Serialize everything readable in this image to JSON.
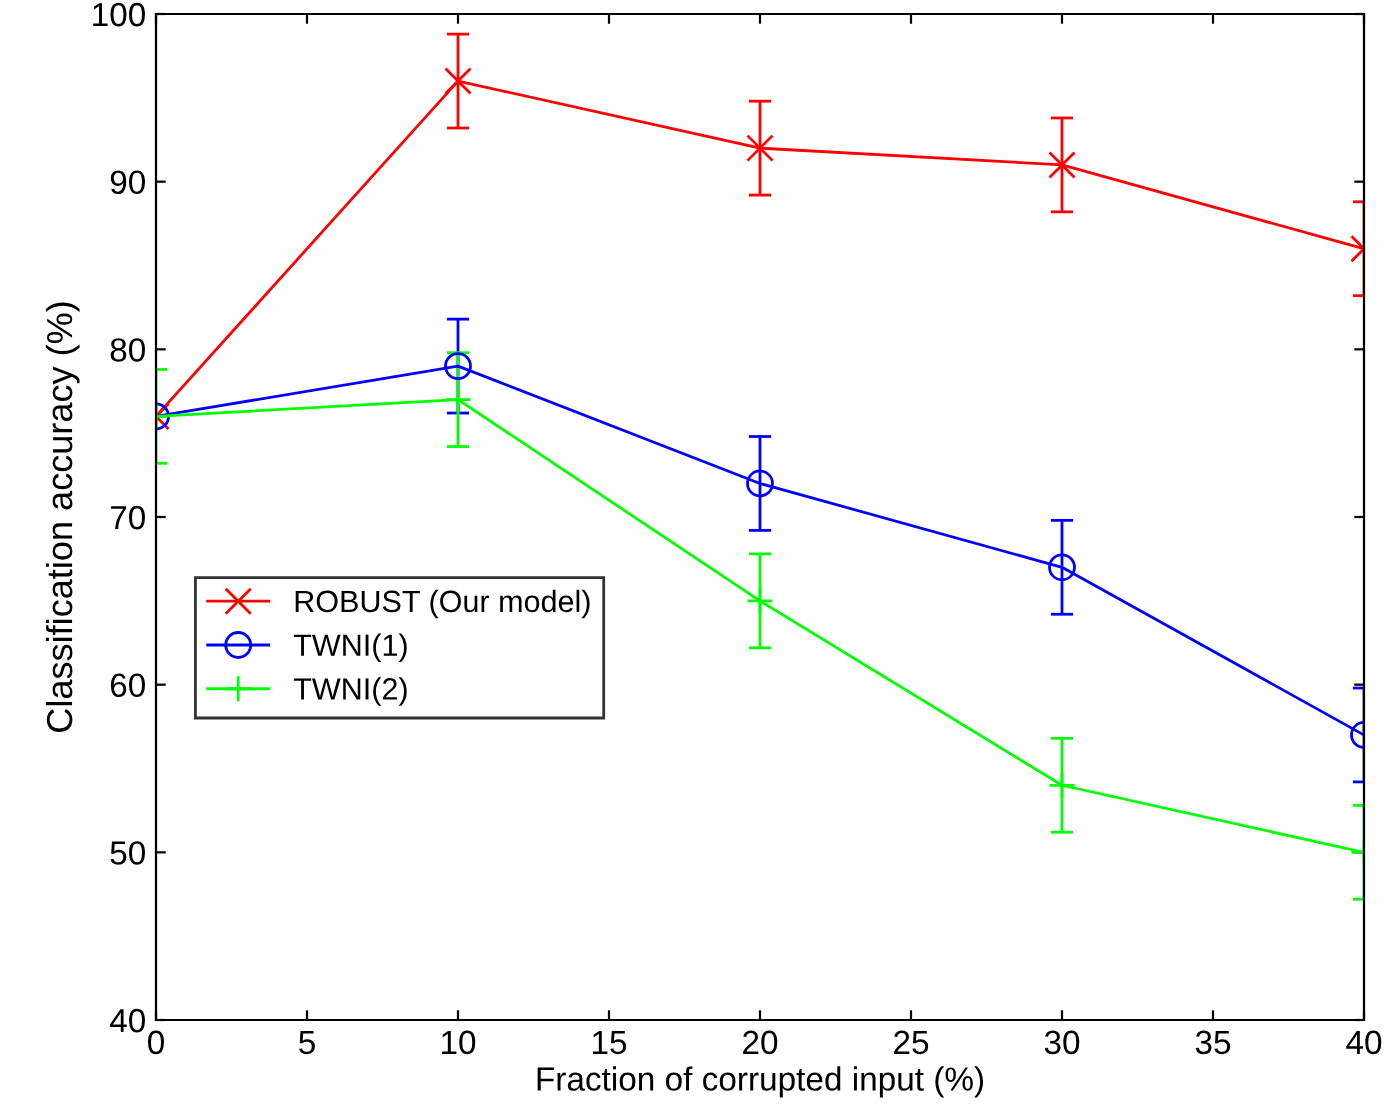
{
  "chart_data": {
    "type": "line",
    "xlabel": "Fraction of corrupted input (%)",
    "ylabel": "Classification accuracy (%)",
    "x": [
      0,
      10,
      20,
      30,
      40
    ],
    "series": [
      {
        "name": "ROBUST (Our model)",
        "color": "#ff0000",
        "marker": "cross",
        "values": [
          76,
          96,
          92,
          91,
          86
        ],
        "errors": [
          null,
          2.8,
          2.8,
          2.8,
          2.8
        ]
      },
      {
        "name": "TWNI(1)",
        "color": "#0000ff",
        "marker": "circle",
        "values": [
          76,
          79,
          72,
          67,
          57
        ],
        "errors": [
          null,
          2.8,
          2.8,
          2.8,
          2.8
        ]
      },
      {
        "name": "TWNI(2)",
        "color": "#00ff00",
        "marker": "plus",
        "values": [
          76,
          77,
          65,
          54,
          50
        ],
        "errors": [
          2.8,
          2.8,
          2.8,
          2.8,
          2.8
        ]
      }
    ],
    "xlim": [
      0,
      40
    ],
    "xticks": [
      0,
      5,
      10,
      15,
      20,
      25,
      30,
      35,
      40
    ],
    "ylim": [
      40,
      100
    ],
    "yticks": [
      40,
      50,
      60,
      70,
      80,
      90,
      100
    ],
    "legend": "center left",
    "grid": false,
    "line_style": "solid"
  }
}
